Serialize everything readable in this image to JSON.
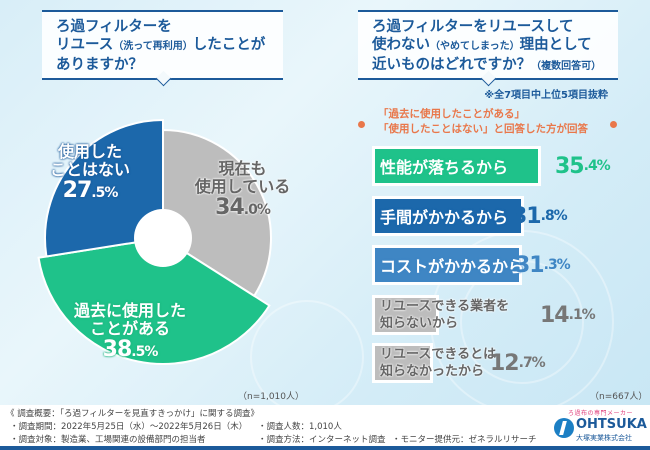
{
  "left_question": {
    "line1": "ろ過フィルターを",
    "line2_main": "リユース",
    "line2_paren": "（洗って再利用）",
    "line2_tail": "したことが",
    "line3": "ありますか？"
  },
  "right_question": {
    "line1": "ろ過フィルターをリユースして",
    "line2_main": "使わない",
    "line2_paren": "（やめてしまった）",
    "line2_tail": "理由として",
    "line3_main": "近いものはどれですか？",
    "line3_paren": "（複数回答可）"
  },
  "right_note": "※全7項目中上位5項目抜粋",
  "condition": {
    "line1": "「過去に使用したことがある」",
    "line2": "「使用したことはない」と回答した方が回答"
  },
  "colors": {
    "blue": "#1c68ab",
    "green": "#1fc28a",
    "gray": "#bdbdbd",
    "bar_blue_light": "#3f86c4",
    "accent_orange": "#e9774a",
    "navy": "#1c5a9a"
  },
  "chart_data": [
    {
      "type": "pie",
      "title": "ろ過フィルターをリユース（洗って再利用）したことがありますか？",
      "slices": [
        {
          "label_line1": "現在も",
          "label_line2": "使用している",
          "value": 34.0,
          "value_int": "34",
          "value_dec": ".0%",
          "color": "#bdbdbd"
        },
        {
          "label_line1": "過去に使用した",
          "label_line2": "ことがある",
          "value": 38.5,
          "value_int": "38",
          "value_dec": ".5%",
          "color": "#1fc28a"
        },
        {
          "label_line1": "使用した",
          "label_line2": "ことはない",
          "value": 27.5,
          "value_int": "27",
          "value_dec": ".5%",
          "color": "#1c68ab"
        }
      ],
      "n": "（n=1,010人）"
    },
    {
      "type": "bar",
      "title": "ろ過フィルターをリユースして使わない（やめてしまった）理由として近いものはどれですか？（複数回答可）",
      "categories": [
        [
          "性能が落ちるから"
        ],
        [
          "手間がかかるから"
        ],
        [
          "コストがかかるから"
        ],
        [
          "リユースできる業者を",
          "知らないから"
        ],
        [
          "リユースできるとは",
          "知らなかったから"
        ]
      ],
      "values": [
        35.4,
        31.8,
        31.3,
        14.1,
        12.7
      ],
      "value_labels": [
        {
          "int": "35",
          "dec": ".4%"
        },
        {
          "int": "31",
          "dec": ".8%"
        },
        {
          "int": "31",
          "dec": ".3%"
        },
        {
          "int": "14",
          "dec": ".1%"
        },
        {
          "int": "12",
          "dec": ".7%"
        }
      ],
      "bar_colors": [
        "#1fc28a",
        "#1c68ab",
        "#3f86c4",
        "#bdbdbd",
        "#bdbdbd"
      ],
      "value_colors": [
        "#1fc28a",
        "#1c68ab",
        "#3f86c4",
        "#777777",
        "#777777"
      ],
      "n": "（n=667人）"
    }
  ],
  "footer": {
    "title": "《 調査概要：「ろ過フィルターを見直すきっかけ」に関する調査》",
    "period": "・調査期間：2022年5月25日（水）～2022年5月26日（木）",
    "target": "・調査対象：製造業、工場関連の設備部門の担当者",
    "count": "・調査人数：1,010人",
    "method": "・調査方法：インターネット調査",
    "provider": "・モニター提供元：ゼネラルリサーチ"
  },
  "logo": {
    "tagline": "ろ過布の専門メーカー",
    "name": "OHTSUKA",
    "corp": "大塚実業株式会社"
  }
}
